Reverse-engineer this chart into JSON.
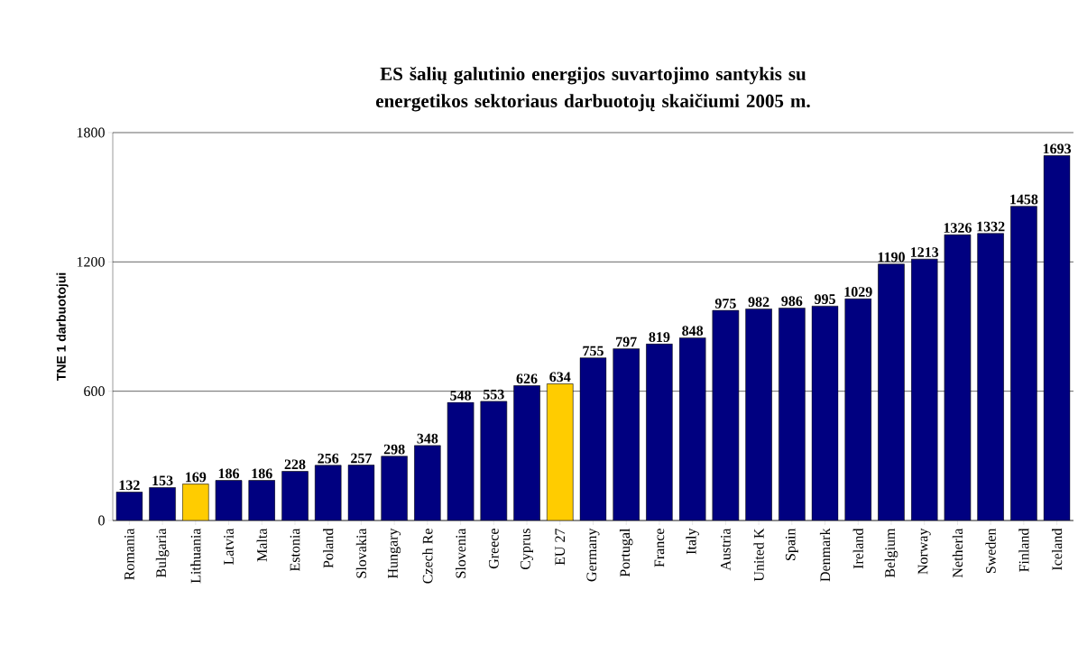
{
  "chart_data": {
    "type": "bar",
    "title": "ES šalių galutinio energijos suvartojimo santykis su energetikos sektoriaus darbuotojų skaičiumi 2005 m.",
    "ylabel": "TNE 1 darbuotojui",
    "categories": [
      "Romania",
      "Bulgaria",
      "Lithuania",
      "Latvia",
      "Malta",
      "Estonia",
      "Poland",
      "Slovakia",
      "Hungary",
      "Czech Re",
      "Slovenia",
      "Greece",
      "Cyprus",
      "EU 27",
      "Germany",
      "Portugal",
      "France",
      "Italy",
      "Austria",
      "United K",
      "Spain",
      "Denmark",
      "Ireland",
      "Belgium",
      "Norway",
      "Netherla",
      "Sweden",
      "Finland",
      "Iceland"
    ],
    "values": [
      132,
      153,
      169,
      186,
      186,
      228,
      256,
      257,
      298,
      348,
      548,
      553,
      626,
      634,
      755,
      797,
      819,
      848,
      975,
      982,
      986,
      995,
      1029,
      1190,
      1213,
      1326,
      1332,
      1458,
      1693
    ],
    "colors": [
      "#000080",
      "#000080",
      "#ffcc00",
      "#000080",
      "#000080",
      "#000080",
      "#000080",
      "#000080",
      "#000080",
      "#000080",
      "#000080",
      "#000080",
      "#000080",
      "#ffcc00",
      "#000080",
      "#000080",
      "#000080",
      "#000080",
      "#000080",
      "#000080",
      "#000080",
      "#000080",
      "#000080",
      "#000080",
      "#000080",
      "#000080",
      "#000080",
      "#000080",
      "#000080"
    ],
    "ylim": [
      0,
      1800
    ],
    "yticks": [
      0,
      600,
      1200,
      1800
    ],
    "grid": "y",
    "data_labels": true
  }
}
